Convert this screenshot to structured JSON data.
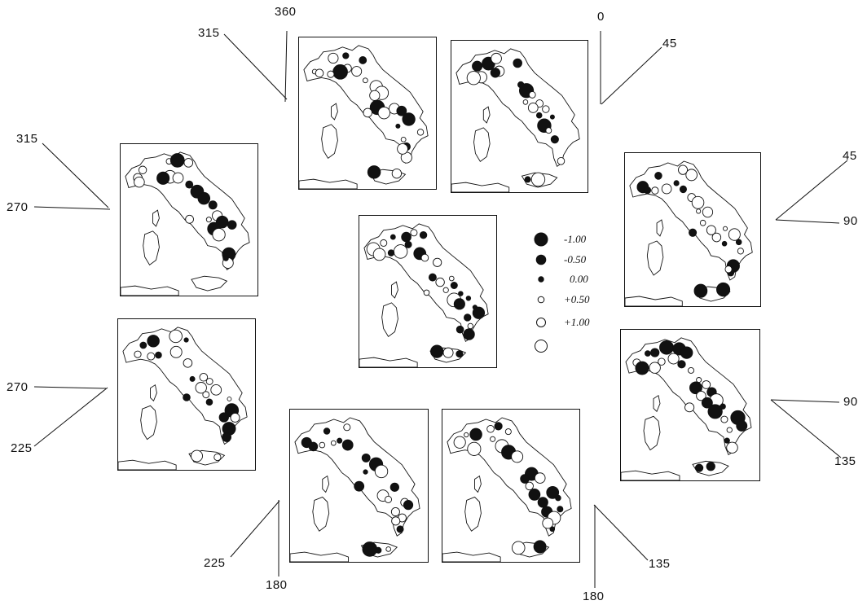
{
  "angle_labels": {
    "a0": "0",
    "a45_top": "45",
    "a45_right": "45",
    "a90_right_upper": "90",
    "a90_right_lower": "90",
    "a135_right": "135",
    "a135_bottom": "135",
    "a180_bottom_right": "180",
    "a180_bottom_left": "180",
    "a225_bottom": "225",
    "a225_left": "225",
    "a270_left_lower": "270",
    "a270_left_upper": "270",
    "a315_left": "315",
    "a315_top": "315",
    "a360": "360"
  },
  "legend": {
    "entries": [
      {
        "label": "-1.00",
        "symbol": "filled-circle-large"
      },
      {
        "label": "-0.50",
        "symbol": "filled-circle-medium"
      },
      {
        "label": "0.00",
        "symbol": "filled-circle-small"
      },
      {
        "label": "+0.50",
        "symbol": "open-circle-small"
      },
      {
        "label": "+1.00",
        "symbol": "open-circle-medium"
      },
      {
        "label": "",
        "symbol": "open-circle-large"
      }
    ]
  },
  "colors": {
    "ink": "#111111",
    "paper": "#ffffff"
  }
}
